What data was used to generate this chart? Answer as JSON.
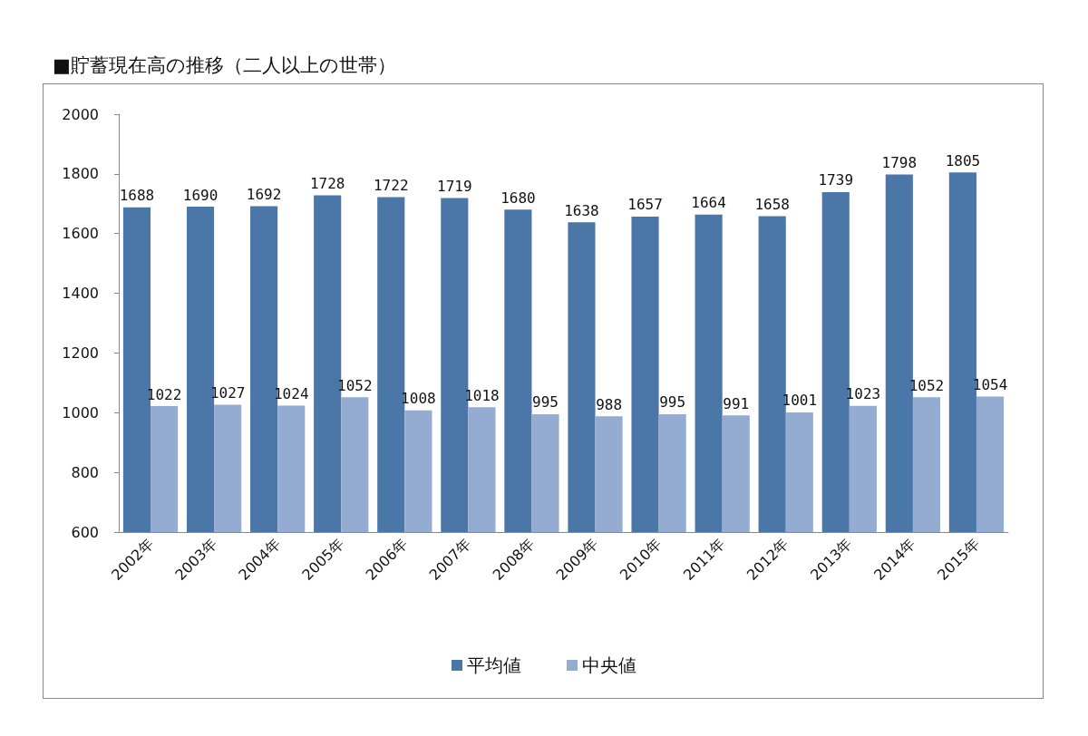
{
  "chart_data": {
    "type": "bar",
    "title": "■貯蓄現在高の推移（二人以上の世帯）",
    "categories": [
      "2002年",
      "2003年",
      "2004年",
      "2005年",
      "2006年",
      "2007年",
      "2008年",
      "2009年",
      "2010年",
      "2011年",
      "2012年",
      "2013年",
      "2014年",
      "2015年"
    ],
    "series": [
      {
        "name": "平均値",
        "color": "#4a76a8",
        "values": [
          1688,
          1690,
          1692,
          1728,
          1722,
          1719,
          1680,
          1638,
          1657,
          1664,
          1658,
          1739,
          1798,
          1805
        ]
      },
      {
        "name": "中央値",
        "color": "#95acd2",
        "values": [
          1022,
          1027,
          1024,
          1052,
          1008,
          1018,
          995,
          988,
          995,
          991,
          1001,
          1023,
          1052,
          1054
        ]
      }
    ],
    "ylim": [
      600,
      2000
    ],
    "yticks": [
      600,
      800,
      1000,
      1200,
      1400,
      1600,
      1800,
      2000
    ],
    "grid": false,
    "legend": "bottom",
    "data_labels": true
  }
}
